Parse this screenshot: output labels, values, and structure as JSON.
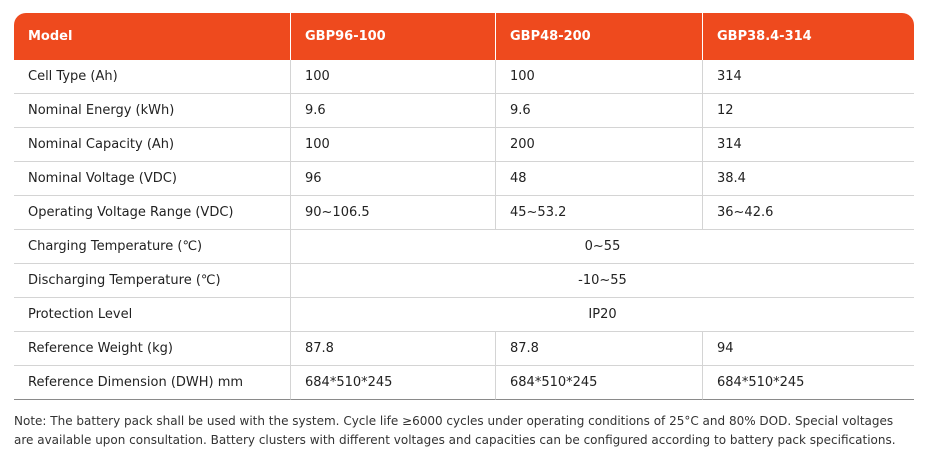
{
  "table": {
    "headers": [
      "Model",
      "GBP96-100",
      "GBP48-200",
      "GBP38.4-314"
    ],
    "rows": [
      {
        "label": "Cell Type (Ah)",
        "values": [
          "100",
          "100",
          "314"
        ]
      },
      {
        "label": "Nominal Energy (kWh)",
        "values": [
          "9.6",
          "9.6",
          "12"
        ]
      },
      {
        "label": "Nominal Capacity (Ah)",
        "values": [
          "100",
          "200",
          "314"
        ]
      },
      {
        "label": "Nominal Voltage (VDC)",
        "values": [
          "96",
          "48",
          "38.4"
        ]
      },
      {
        "label": "Operating Voltage Range (VDC)",
        "values": [
          "90~106.5",
          "45~53.2",
          "36~42.6"
        ]
      },
      {
        "label": "Charging Temperature (℃)",
        "merged_value": "0~55"
      },
      {
        "label": "Discharging Temperature (℃)",
        "merged_value": "-10~55"
      },
      {
        "label": "Protection Level",
        "merged_value": "IP20"
      },
      {
        "label": "Reference Weight (kg)",
        "values": [
          "87.8",
          "87.8",
          "94"
        ]
      },
      {
        "label": "Reference Dimension (DWH) mm",
        "values": [
          "684*510*245",
          "684*510*245",
          "684*510*245"
        ]
      }
    ]
  },
  "note": "Note: The battery pack shall be used with the system. Cycle life ≥6000 cycles under operating conditions of 25°C and 80% DOD. Special voltages are available upon consultation. Battery clusters with different voltages and capacities can be configured according to battery pack specifications.",
  "colors": {
    "header_bg": "#ee4a1e",
    "header_text": "#ffffff",
    "row_border": "#d4d4d4"
  }
}
